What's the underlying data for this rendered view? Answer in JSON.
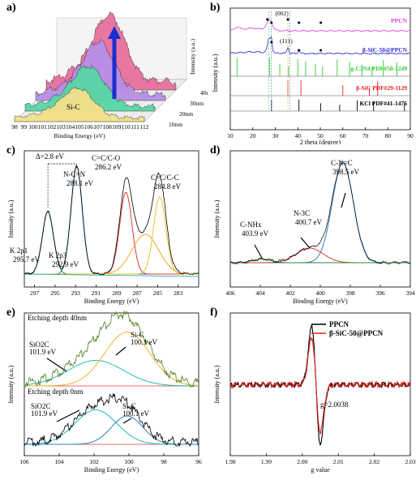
{
  "panels": {
    "a": "a)",
    "b": "b)",
    "c": "c)",
    "d": "d)",
    "e": "e)",
    "f": "f)"
  },
  "chart_data": [
    {
      "id": "a",
      "type": "line",
      "subtype": "3d-waterfall",
      "xlabel": "Binding Energy (eV)",
      "ylabel": "Intensity (a.u.)",
      "x_ticks": [
        "98",
        "99",
        "100",
        "101",
        "102",
        "103",
        "104",
        "105",
        "106",
        "107",
        "108",
        "109",
        "110",
        "111",
        "112"
      ],
      "depth_labels": [
        "10nm",
        "20nm",
        "30nm",
        "40nm"
      ],
      "annotations": [
        "Si-C"
      ],
      "colors": [
        "#f4e08a",
        "#57d6a6",
        "#b88fe8",
        "#e86f9e"
      ],
      "peak_x": 105,
      "series_peaks": [
        0.45,
        0.6,
        0.78,
        1.0
      ]
    },
    {
      "id": "b",
      "type": "line",
      "subtype": "xrd",
      "xlabel": "2 theta (degree)",
      "ylabel": "Intensity (a.u.)",
      "xlim": [
        10,
        90
      ],
      "x_ticks": [
        "10",
        "20",
        "30",
        "40",
        "50",
        "60",
        "70",
        "80",
        "90"
      ],
      "peak_labels": [
        "(002)",
        "(111)"
      ],
      "series": [
        {
          "name": "PPCN",
          "color": "#e040e0"
        },
        {
          "name": "β-SiC-50@PPCN",
          "color": "#2c2ccc"
        }
      ],
      "references": [
        {
          "name": "g-C3N4",
          "pdf": "PDF#50-1249",
          "color": "#2ecc2e",
          "peaks": [
            13.0,
            27.4,
            32.0,
            35.8,
            40.0,
            43.5,
            47.8,
            51.0,
            57.5,
            63.0,
            68.5,
            73.0,
            78.0,
            84.0
          ]
        },
        {
          "name": "β-SiC",
          "pdf": "PDF#29-1129",
          "color": "#e82020",
          "peaks": [
            35.6,
            41.4,
            60.0,
            71.8,
            75.5
          ]
        },
        {
          "name": "KCl",
          "pdf": "PDF#41-1476",
          "color": "#000000",
          "peaks": [
            28.3,
            40.5,
            50.2,
            58.6,
            66.4,
            73.7,
            87.4
          ]
        }
      ],
      "markers": {
        "diamond": [
          26.5,
          35.6
        ],
        "dot": [
          28.3,
          40.5,
          50.2
        ]
      }
    },
    {
      "id": "c",
      "type": "line",
      "subtype": "xps",
      "xlabel": "Binding Energy (eV)",
      "ylabel": "Intensity (a.u.)",
      "xlim": [
        298,
        281
      ],
      "x_ticks": [
        "297",
        "295",
        "293",
        "291",
        "289",
        "287",
        "285",
        "283"
      ],
      "x_tick_values": [
        297,
        295,
        293,
        291,
        289,
        287,
        285,
        283
      ],
      "peaks": [
        {
          "label": "K 2p1",
          "value": "295.7 eV",
          "x": 295.7,
          "color": "#2e8b3a"
        },
        {
          "label": "K 2p3",
          "value": "292.9 eV",
          "x": 292.9,
          "color": "#2f7fc1"
        },
        {
          "label": "N-C=N",
          "value": "288.1 eV",
          "x": 288.1,
          "color": "#e53935"
        },
        {
          "label": "C=C/C-O",
          "value": "286.2 eV",
          "x": 286.2,
          "color": "#f5a623"
        },
        {
          "label": "C=C/C-C",
          "value": "284.8 eV",
          "x": 284.8,
          "color": "#e8c52a"
        }
      ],
      "annotations": [
        "Δ=2.8 eV"
      ]
    },
    {
      "id": "d",
      "type": "line",
      "subtype": "xps",
      "xlabel": "Binding Energy (eV)",
      "ylabel": "Intensity (a.u.)",
      "xlim": [
        406,
        394
      ],
      "x_ticks": [
        "406",
        "404",
        "402",
        "400",
        "398",
        "396",
        "394"
      ],
      "peaks": [
        {
          "label": "C-N=C",
          "value": "398.5 eV",
          "x": 398.5,
          "color": "#2f7fc1"
        },
        {
          "label": "N-3C",
          "value": "400.7 eV",
          "x": 400.7,
          "color": "#e53935"
        },
        {
          "label": "C-NHx",
          "value": "403.9 eV",
          "x": 403.9,
          "color": "#2e8b3a"
        }
      ]
    },
    {
      "id": "e",
      "type": "line",
      "subtype": "xps-depth",
      "xlabel": "Binding Energy (eV)",
      "ylabel": "Intensity (a.u.)",
      "xlim": [
        106,
        96
      ],
      "x_ticks": [
        "106",
        "104",
        "102",
        "100",
        "98",
        "96"
      ],
      "layers": [
        {
          "label": "Etching depth 40nm",
          "peaks": [
            {
              "label": "SiO2C",
              "value": "101.9 eV",
              "x": 101.9
            },
            {
              "label": "Si-C",
              "value": "100.1 eV",
              "x": 100.1
            }
          ]
        },
        {
          "label": "Etching depth 0nm",
          "peaks": [
            {
              "label": "SiO2C",
              "value": "101.9 eV",
              "x": 101.9
            },
            {
              "label": "Si-C",
              "value": "100.1 eV",
              "x": 100.1
            }
          ]
        }
      ]
    },
    {
      "id": "f",
      "type": "line",
      "subtype": "epr",
      "xlabel": "g value",
      "ylabel": "Intensity (a.u.)",
      "xlim": [
        1.98,
        2.03
      ],
      "x_ticks": [
        "1.98",
        "1.99",
        "2.00",
        "2.01",
        "2.02",
        "2.03"
      ],
      "series": [
        {
          "name": "PPCN",
          "color": "#000000"
        },
        {
          "name": "β-SiC-50@PPCN",
          "color": "#e02020"
        }
      ],
      "annotations": [
        "g=2.0038"
      ],
      "g_center": 2.0038
    }
  ]
}
